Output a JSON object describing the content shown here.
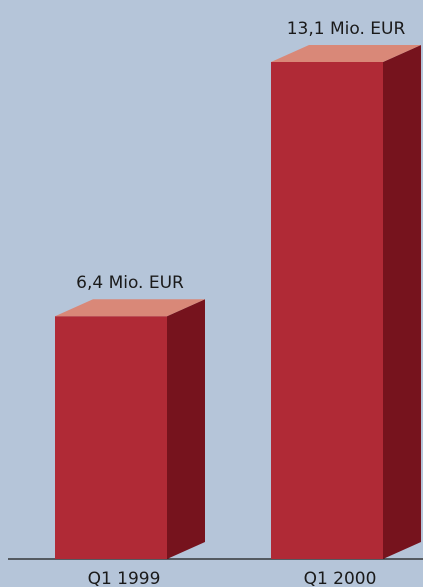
{
  "chart_data": {
    "type": "bar",
    "categories": [
      "Q1 1999",
      "Q1 2000"
    ],
    "values": [
      6.4,
      13.1
    ],
    "data_labels": [
      "6,4 Mio. EUR",
      "13,1 Mio. EUR"
    ],
    "unit": "Mio. EUR",
    "style": "3d",
    "grid": false,
    "legend": "none"
  },
  "colors": {
    "background": "#b5c5d9",
    "bar_front": "#b02a36",
    "bar_top": "#d98878",
    "bar_side": "#76131d",
    "baseline": "#1a1a1a"
  }
}
